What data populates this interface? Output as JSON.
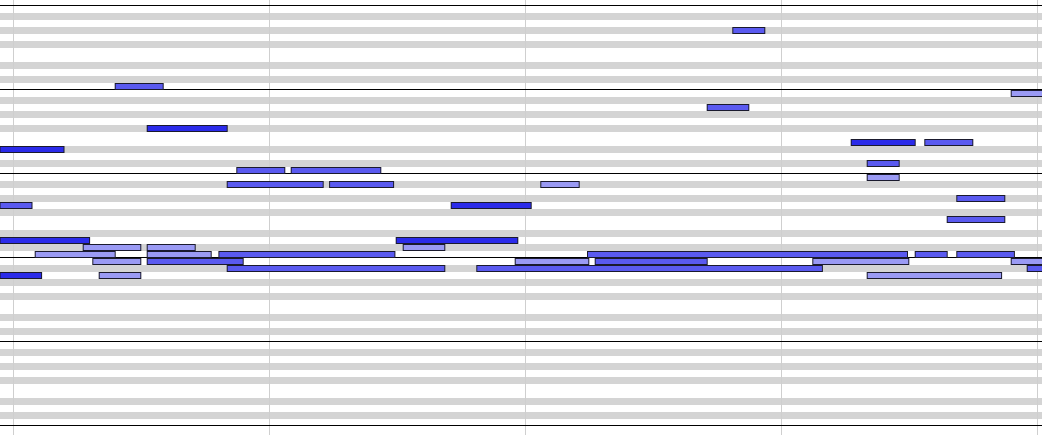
{
  "piano_roll": {
    "colors": {
      "background": "#ffffff",
      "black_key_row": "#d4d4d4",
      "octave_line": "#000000",
      "beat_line": "#cfcfcf",
      "note_border": "#1a1a2e",
      "velocity_high": "#2b2bea",
      "velocity_mid": "#5a5af0",
      "velocity_low": "#9a9af4"
    },
    "view": {
      "top_pitch": 95,
      "bottom_pitch": 36,
      "start_beat": -0.2,
      "end_beat": 16.1,
      "beats_per_bar": 4
    },
    "notes": [
      {
        "pitch": 92,
        "start": 11.25,
        "length": 0.5,
        "velocity": 90
      },
      {
        "pitch": 84,
        "start": 1.6,
        "length": 0.75,
        "velocity": 100
      },
      {
        "pitch": 83,
        "start": 15.6,
        "length": 0.6,
        "velocity": 60
      },
      {
        "pitch": 81,
        "start": 10.85,
        "length": 0.65,
        "velocity": 100
      },
      {
        "pitch": 78,
        "start": 2.1,
        "length": 1.25,
        "velocity": 120
      },
      {
        "pitch": 76,
        "start": 13.1,
        "length": 1.0,
        "velocity": 115
      },
      {
        "pitch": 76,
        "start": 14.25,
        "length": 0.75,
        "velocity": 105
      },
      {
        "pitch": 75,
        "start": -0.2,
        "length": 1.0,
        "velocity": 120
      },
      {
        "pitch": 73,
        "start": 13.35,
        "length": 0.5,
        "velocity": 105
      },
      {
        "pitch": 72,
        "start": 3.5,
        "length": 0.75,
        "velocity": 95
      },
      {
        "pitch": 72,
        "start": 4.35,
        "length": 1.4,
        "velocity": 100
      },
      {
        "pitch": 71,
        "start": 13.35,
        "length": 0.5,
        "velocity": 80
      },
      {
        "pitch": 70,
        "start": 3.35,
        "length": 1.5,
        "velocity": 105
      },
      {
        "pitch": 70,
        "start": 4.95,
        "length": 1.0,
        "velocity": 100
      },
      {
        "pitch": 70,
        "start": 8.25,
        "length": 0.6,
        "velocity": 60
      },
      {
        "pitch": 68,
        "start": 14.75,
        "length": 0.75,
        "velocity": 105
      },
      {
        "pitch": 67,
        "start": -0.2,
        "length": 0.5,
        "velocity": 90
      },
      {
        "pitch": 67,
        "start": 6.85,
        "length": 1.25,
        "velocity": 120
      },
      {
        "pitch": 65,
        "start": 14.6,
        "length": 0.9,
        "velocity": 90
      },
      {
        "pitch": 62,
        "start": -0.2,
        "length": 1.4,
        "velocity": 115
      },
      {
        "pitch": 62,
        "start": 5.99,
        "length": 1.9,
        "velocity": 115
      },
      {
        "pitch": 61,
        "start": 1.1,
        "length": 0.9,
        "velocity": 80
      },
      {
        "pitch": 61,
        "start": 2.1,
        "length": 0.75,
        "velocity": 60
      },
      {
        "pitch": 61,
        "start": 6.1,
        "length": 0.65,
        "velocity": 60
      },
      {
        "pitch": 60,
        "start": 0.35,
        "length": 1.25,
        "velocity": 80
      },
      {
        "pitch": 60,
        "start": 2.1,
        "length": 1.0,
        "velocity": 80
      },
      {
        "pitch": 60,
        "start": 3.22,
        "length": 2.75,
        "velocity": 100
      },
      {
        "pitch": 60,
        "start": 8.98,
        "length": 5.0,
        "velocity": 100
      },
      {
        "pitch": 60,
        "start": 14.1,
        "length": 0.5,
        "velocity": 105
      },
      {
        "pitch": 60,
        "start": 14.75,
        "length": 0.9,
        "velocity": 105
      },
      {
        "pitch": 59,
        "start": 1.25,
        "length": 0.75,
        "velocity": 80
      },
      {
        "pitch": 59,
        "start": 2.1,
        "length": 1.5,
        "velocity": 90
      },
      {
        "pitch": 59,
        "start": 7.85,
        "length": 1.15,
        "velocity": 80
      },
      {
        "pitch": 59,
        "start": 9.1,
        "length": 1.75,
        "velocity": 90
      },
      {
        "pitch": 59,
        "start": 12.5,
        "length": 1.5,
        "velocity": 80
      },
      {
        "pitch": 59,
        "start": 15.6,
        "length": 0.6,
        "velocity": 80
      },
      {
        "pitch": 58,
        "start": 3.35,
        "length": 3.4,
        "velocity": 105
      },
      {
        "pitch": 58,
        "start": 7.25,
        "length": 5.4,
        "velocity": 105
      },
      {
        "pitch": 58,
        "start": 15.85,
        "length": 0.4,
        "velocity": 105
      },
      {
        "pitch": 57,
        "start": -0.2,
        "length": 0.65,
        "velocity": 110
      },
      {
        "pitch": 57,
        "start": 1.35,
        "length": 0.65,
        "velocity": 80
      },
      {
        "pitch": 57,
        "start": 13.35,
        "length": 2.1,
        "velocity": 80
      }
    ]
  }
}
